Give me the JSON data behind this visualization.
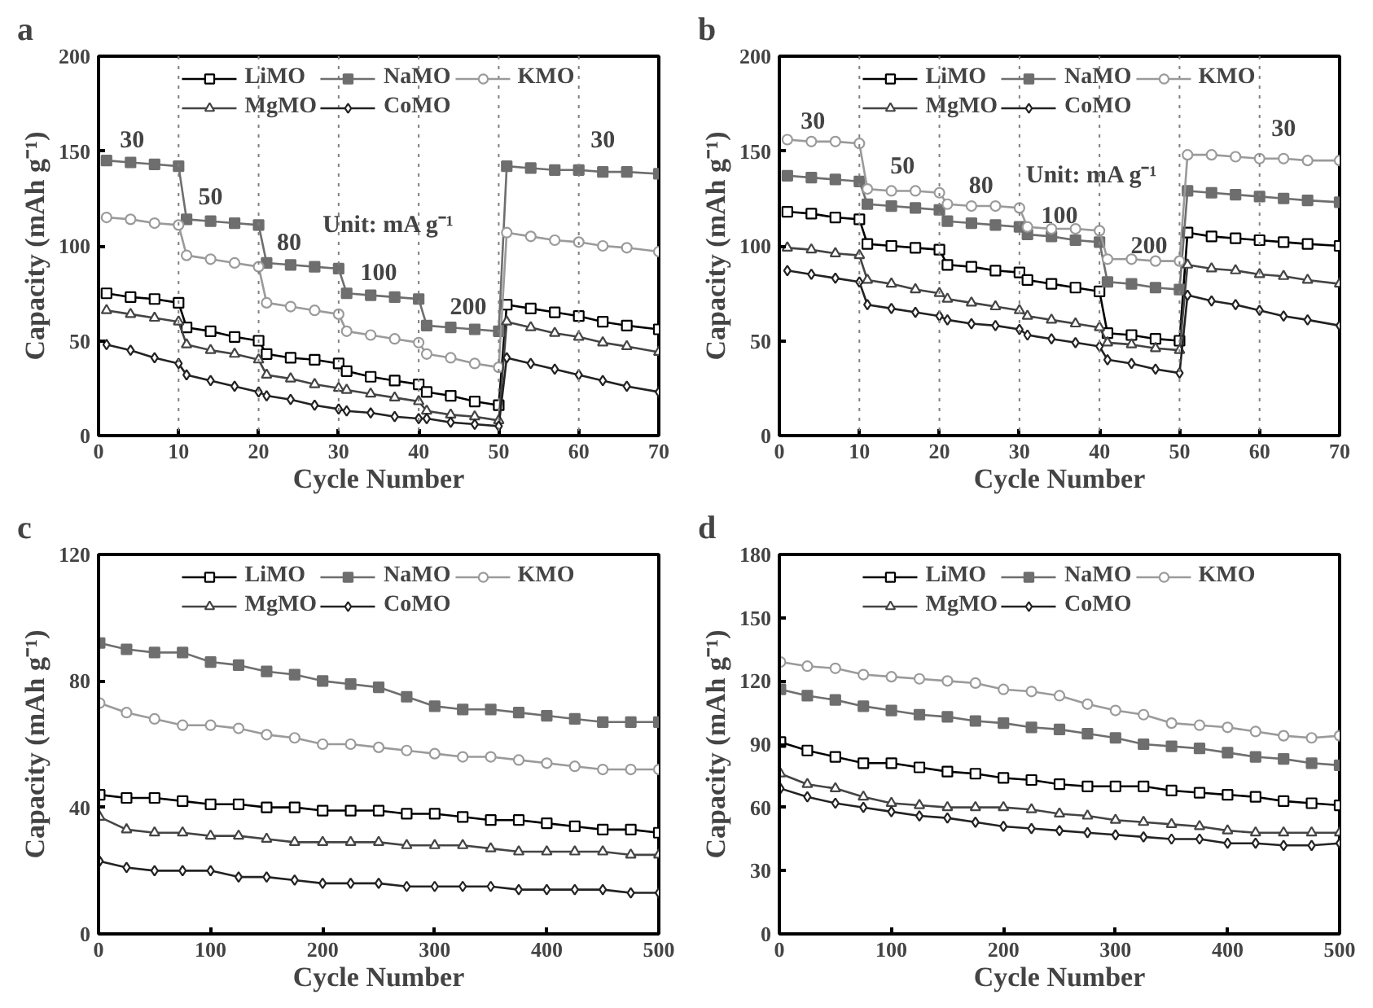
{
  "chart_data": [
    {
      "type": "line",
      "title": "a",
      "xlabel": "Cycle Number",
      "ylabel": "Capacity (mAh g⁻¹)",
      "xlim": [
        0,
        70
      ],
      "ylim": [
        0,
        200
      ],
      "xticks": [
        0,
        10,
        20,
        30,
        40,
        50,
        60,
        70
      ],
      "yticks": [
        0,
        50,
        100,
        150,
        200
      ],
      "grid": false,
      "legend": "top",
      "x": [
        1,
        4,
        7,
        10,
        11,
        14,
        17,
        20,
        21,
        24,
        27,
        30,
        31,
        34,
        37,
        40,
        41,
        44,
        47,
        50,
        51,
        54,
        57,
        60,
        63,
        66,
        70
      ],
      "series": [
        {
          "name": "LiMO",
          "color": "#000000",
          "marker": "square",
          "values": [
            75,
            73,
            72,
            70,
            57,
            55,
            52,
            50,
            43,
            41,
            40,
            38,
            34,
            31,
            29,
            27,
            23,
            21,
            18,
            16,
            69,
            67,
            65,
            63,
            60,
            58,
            56
          ]
        },
        {
          "name": "NaMO",
          "color": "#6e6e6e",
          "marker": "square_filled",
          "values": [
            145,
            144,
            143,
            142,
            114,
            113,
            112,
            111,
            91,
            90,
            89,
            88,
            75,
            74,
            73,
            72,
            58,
            57,
            56,
            55,
            142,
            141,
            140,
            140,
            139,
            139,
            138
          ]
        },
        {
          "name": "KMO",
          "color": "#9a9a9a",
          "marker": "circle",
          "values": [
            115,
            114,
            112,
            111,
            95,
            93,
            91,
            89,
            70,
            68,
            66,
            64,
            55,
            53,
            51,
            49,
            43,
            41,
            38,
            36,
            107,
            105,
            103,
            102,
            100,
            99,
            97
          ]
        },
        {
          "name": "MgMO",
          "color": "#444444",
          "marker": "triangle",
          "values": [
            66,
            64,
            62,
            60,
            48,
            45,
            43,
            40,
            32,
            30,
            27,
            25,
            24,
            22,
            20,
            18,
            13,
            11,
            10,
            8,
            60,
            57,
            54,
            52,
            49,
            47,
            44
          ]
        },
        {
          "name": "CoMO",
          "color": "#222222",
          "marker": "diamond",
          "values": [
            48,
            45,
            41,
            38,
            32,
            29,
            26,
            23,
            21,
            19,
            16,
            14,
            13,
            12,
            10,
            9,
            9,
            7,
            6,
            5,
            41,
            38,
            35,
            32,
            29,
            26,
            23
          ]
        }
      ],
      "ref_lines": [
        {
          "axis": "x",
          "value": 10,
          "color": "#808080",
          "line_style": "dotted"
        },
        {
          "axis": "x",
          "value": 20,
          "color": "#808080",
          "line_style": "dotted"
        },
        {
          "axis": "x",
          "value": 30,
          "color": "#808080",
          "line_style": "dotted"
        },
        {
          "axis": "x",
          "value": 40,
          "color": "#808080",
          "line_style": "dotted"
        },
        {
          "axis": "x",
          "value": 50,
          "color": "#808080",
          "line_style": "dotted"
        },
        {
          "axis": "x",
          "value": 60,
          "color": "#808080",
          "line_style": "dotted"
        }
      ],
      "annotations": [
        "30",
        "50",
        "80",
        "100",
        "200",
        "30",
        "Unit: mA g⁻¹"
      ]
    },
    {
      "type": "line",
      "title": "b",
      "xlabel": "Cycle Number",
      "ylabel": "Capacity (mAh g⁻¹)",
      "xlim": [
        0,
        70
      ],
      "ylim": [
        0,
        200
      ],
      "xticks": [
        0,
        10,
        20,
        30,
        40,
        50,
        60,
        70
      ],
      "yticks": [
        0,
        50,
        100,
        150,
        200
      ],
      "grid": false,
      "legend": "top",
      "x": [
        1,
        4,
        7,
        10,
        11,
        14,
        17,
        20,
        21,
        24,
        27,
        30,
        31,
        34,
        37,
        40,
        41,
        44,
        47,
        50,
        51,
        54,
        57,
        60,
        63,
        66,
        70
      ],
      "series": [
        {
          "name": "LiMO",
          "color": "#000000",
          "marker": "square",
          "values": [
            118,
            117,
            115,
            114,
            101,
            100,
            99,
            98,
            90,
            89,
            87,
            86,
            82,
            80,
            78,
            76,
            54,
            53,
            51,
            50,
            107,
            105,
            104,
            103,
            102,
            101,
            100
          ]
        },
        {
          "name": "NaMO",
          "color": "#6e6e6e",
          "marker": "square_filled",
          "values": [
            137,
            136,
            135,
            134,
            122,
            121,
            120,
            119,
            113,
            112,
            111,
            110,
            106,
            105,
            103,
            102,
            81,
            80,
            78,
            77,
            129,
            128,
            127,
            126,
            125,
            124,
            123
          ]
        },
        {
          "name": "KMO",
          "color": "#9a9a9a",
          "marker": "circle",
          "values": [
            156,
            155,
            155,
            154,
            130,
            129,
            129,
            128,
            122,
            121,
            121,
            120,
            110,
            109,
            109,
            108,
            93,
            93,
            92,
            92,
            148,
            148,
            147,
            146,
            146,
            145,
            145
          ]
        },
        {
          "name": "MgMO",
          "color": "#444444",
          "marker": "triangle",
          "values": [
            99,
            98,
            96,
            95,
            82,
            80,
            77,
            75,
            72,
            70,
            68,
            66,
            63,
            61,
            59,
            57,
            49,
            48,
            46,
            45,
            90,
            88,
            87,
            85,
            84,
            82,
            80
          ]
        },
        {
          "name": "CoMO",
          "color": "#222222",
          "marker": "diamond",
          "values": [
            87,
            85,
            83,
            81,
            69,
            67,
            65,
            63,
            61,
            59,
            58,
            56,
            53,
            51,
            49,
            47,
            40,
            38,
            35,
            33,
            74,
            71,
            69,
            66,
            63,
            61,
            58
          ]
        }
      ],
      "ref_lines": [
        {
          "axis": "x",
          "value": 10,
          "color": "#808080",
          "line_style": "dotted"
        },
        {
          "axis": "x",
          "value": 20,
          "color": "#808080",
          "line_style": "dotted"
        },
        {
          "axis": "x",
          "value": 30,
          "color": "#808080",
          "line_style": "dotted"
        },
        {
          "axis": "x",
          "value": 40,
          "color": "#808080",
          "line_style": "dotted"
        },
        {
          "axis": "x",
          "value": 50,
          "color": "#808080",
          "line_style": "dotted"
        },
        {
          "axis": "x",
          "value": 60,
          "color": "#808080",
          "line_style": "dotted"
        }
      ],
      "annotations": [
        "30",
        "50",
        "80",
        "100",
        "200",
        "30",
        "Unit: mA g⁻¹"
      ]
    },
    {
      "type": "line",
      "title": "c",
      "xlabel": "Cycle Number",
      "ylabel": "Capacity (mAh g⁻¹)",
      "xlim": [
        0,
        500
      ],
      "ylim": [
        0,
        120
      ],
      "xticks": [
        0,
        100,
        200,
        300,
        400,
        500
      ],
      "yticks": [
        0,
        40,
        80,
        120
      ],
      "grid": false,
      "legend": "top",
      "x": [
        1,
        25,
        50,
        75,
        100,
        125,
        150,
        175,
        200,
        225,
        250,
        275,
        300,
        325,
        350,
        375,
        400,
        425,
        450,
        475,
        500
      ],
      "series": [
        {
          "name": "LiMO",
          "color": "#000000",
          "marker": "square",
          "values": [
            44,
            43,
            43,
            42,
            41,
            41,
            40,
            40,
            39,
            39,
            39,
            38,
            38,
            37,
            36,
            36,
            35,
            34,
            33,
            33,
            32
          ]
        },
        {
          "name": "NaMO",
          "color": "#6e6e6e",
          "marker": "square_filled",
          "values": [
            92,
            90,
            89,
            89,
            86,
            85,
            83,
            82,
            80,
            79,
            78,
            75,
            72,
            71,
            71,
            70,
            69,
            68,
            67,
            67,
            67
          ]
        },
        {
          "name": "KMO",
          "color": "#9a9a9a",
          "marker": "circle",
          "values": [
            73,
            70,
            68,
            66,
            66,
            65,
            63,
            62,
            60,
            60,
            59,
            58,
            57,
            56,
            56,
            55,
            54,
            53,
            52,
            52,
            52
          ]
        },
        {
          "name": "MgMO",
          "color": "#444444",
          "marker": "triangle",
          "values": [
            37,
            33,
            32,
            32,
            31,
            31,
            30,
            29,
            29,
            29,
            29,
            28,
            28,
            28,
            27,
            26,
            26,
            26,
            26,
            25,
            25
          ]
        },
        {
          "name": "CoMO",
          "color": "#222222",
          "marker": "diamond",
          "values": [
            23,
            21,
            20,
            20,
            20,
            18,
            18,
            17,
            16,
            16,
            16,
            15,
            15,
            15,
            15,
            14,
            14,
            14,
            14,
            13,
            13
          ]
        }
      ]
    },
    {
      "type": "line",
      "title": "d",
      "xlabel": "Cycle Number",
      "ylabel": "Capacity (mAh g⁻¹)",
      "xlim": [
        0,
        500
      ],
      "ylim": [
        0,
        180
      ],
      "xticks": [
        0,
        100,
        200,
        300,
        400,
        500
      ],
      "yticks": [
        0,
        30,
        60,
        90,
        120,
        150,
        180
      ],
      "grid": false,
      "legend": "top",
      "x": [
        1,
        25,
        50,
        75,
        100,
        125,
        150,
        175,
        200,
        225,
        250,
        275,
        300,
        325,
        350,
        375,
        400,
        425,
        450,
        475,
        500
      ],
      "series": [
        {
          "name": "LiMO",
          "color": "#000000",
          "marker": "square",
          "values": [
            91,
            87,
            84,
            81,
            81,
            79,
            77,
            76,
            74,
            73,
            71,
            70,
            70,
            70,
            68,
            67,
            66,
            65,
            63,
            62,
            61
          ]
        },
        {
          "name": "NaMO",
          "color": "#6e6e6e",
          "marker": "square_filled",
          "values": [
            116,
            113,
            111,
            108,
            106,
            104,
            103,
            101,
            100,
            98,
            97,
            95,
            93,
            90,
            89,
            88,
            86,
            84,
            83,
            81,
            80
          ]
        },
        {
          "name": "KMO",
          "color": "#9a9a9a",
          "marker": "circle",
          "values": [
            129,
            127,
            126,
            123,
            122,
            121,
            120,
            119,
            116,
            115,
            113,
            109,
            106,
            104,
            100,
            99,
            98,
            96,
            94,
            93,
            94
          ]
        },
        {
          "name": "MgMO",
          "color": "#444444",
          "marker": "triangle",
          "values": [
            76,
            71,
            69,
            65,
            62,
            61,
            60,
            60,
            60,
            59,
            57,
            56,
            54,
            53,
            52,
            51,
            49,
            48,
            48,
            48,
            48
          ]
        },
        {
          "name": "CoMO",
          "color": "#222222",
          "marker": "diamond",
          "values": [
            69,
            65,
            62,
            60,
            58,
            56,
            55,
            53,
            51,
            50,
            49,
            48,
            47,
            46,
            45,
            45,
            43,
            43,
            42,
            42,
            43
          ]
        }
      ]
    }
  ]
}
